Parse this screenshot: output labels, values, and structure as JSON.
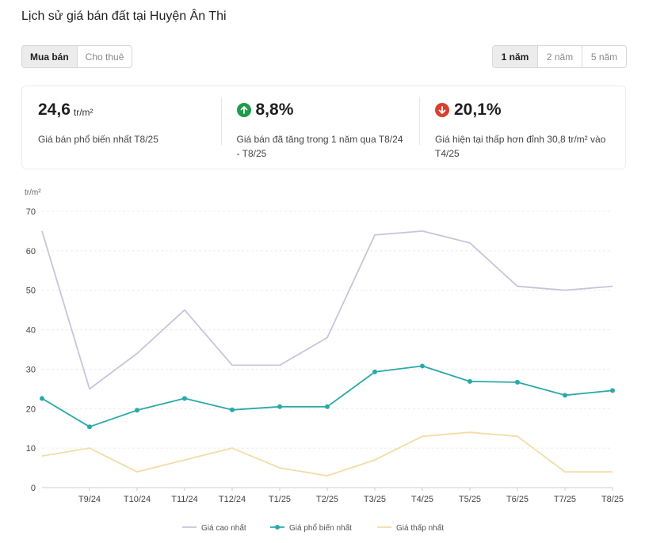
{
  "title": "Lịch sử giá bán đất tại Huyện Ân Thi",
  "tabs": [
    {
      "label": "Mua bán",
      "active": true
    },
    {
      "label": "Cho thuê",
      "active": false
    }
  ],
  "periods": [
    {
      "label": "1 năm",
      "active": true
    },
    {
      "label": "2 năm",
      "active": false
    },
    {
      "label": "5 năm",
      "active": false
    }
  ],
  "stats": [
    {
      "value": "24,6",
      "unit": "tr/m²",
      "icon": "",
      "desc": "Giá bán phổ biến nhất T8/25"
    },
    {
      "value": "8,8%",
      "unit": "",
      "icon": "arrow-up-icon",
      "desc": "Giá bán đã tăng trong 1 năm qua T8/24 - T8/25"
    },
    {
      "value": "20,1%",
      "unit": "",
      "icon": "arrow-down-icon",
      "desc": "Giá hiện tại thấp hơn đỉnh 30,8 tr/m² vào T4/25"
    }
  ],
  "colors": {
    "high": "#c9c4d9",
    "common": "#2ba8a8",
    "low": "#f3dca6",
    "up": "#1e9c4a",
    "down": "#d9402f"
  },
  "chart_data": {
    "type": "line",
    "ylabel": "tr/m²",
    "ylim": [
      0,
      70
    ],
    "yticks": [
      0,
      10,
      20,
      30,
      40,
      50,
      60,
      70
    ],
    "x_labels": [
      "",
      "T9/24",
      "T10/24",
      "T11/24",
      "T12/24",
      "T1/25",
      "T2/25",
      "T3/25",
      "T4/25",
      "T5/25",
      "T6/25",
      "T7/25",
      "T8/25"
    ],
    "grid": true,
    "legend_position": "bottom",
    "series": [
      {
        "name": "Giá cao nhất",
        "color": "#c9c4d9",
        "markers": false,
        "values": [
          65,
          25,
          34,
          45,
          31,
          31,
          38,
          64,
          65,
          62,
          51,
          50,
          51
        ]
      },
      {
        "name": "Giá phổ biến nhất",
        "color": "#2ba8a8",
        "markers": true,
        "values": [
          22.6,
          15.4,
          19.6,
          22.6,
          19.7,
          20.5,
          20.5,
          29.3,
          30.8,
          26.9,
          26.7,
          23.4,
          24.6
        ]
      },
      {
        "name": "Giá thấp nhất",
        "color": "#f3dca6",
        "markers": false,
        "values": [
          8,
          10,
          4,
          7,
          10,
          5,
          3,
          7,
          13,
          14,
          13,
          4,
          4
        ]
      }
    ]
  }
}
